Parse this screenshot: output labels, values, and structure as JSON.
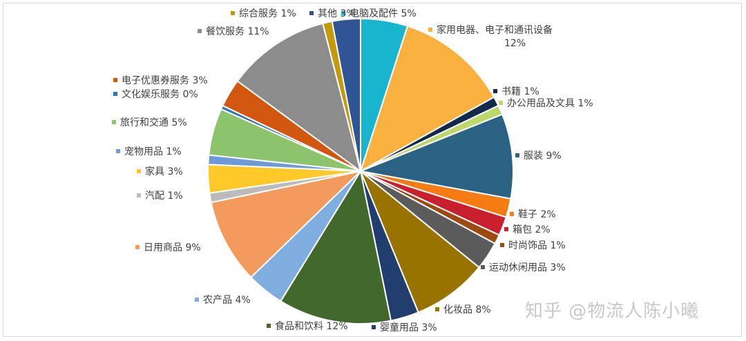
{
  "watermark": "知乎 @物流人陈小曦",
  "chart_data": {
    "type": "pie",
    "title": "",
    "legend": "none",
    "slices": [
      {
        "label": "电脑及配件 5%",
        "value": 5,
        "color": "#17B5CE"
      },
      {
        "label": "家用电器、电子和通讯设备 12%",
        "value": 12,
        "color": "#F9B03E"
      },
      {
        "label": "书籍 1%",
        "value": 1,
        "color": "#13294B"
      },
      {
        "label": "办公用品及文具 1%",
        "value": 1,
        "color": "#BCD86C"
      },
      {
        "label": "服装 9%",
        "value": 9,
        "color": "#2B6283"
      },
      {
        "label": "鞋子 2%",
        "value": 2,
        "color": "#F57C12"
      },
      {
        "label": "箱包 2%",
        "value": 2,
        "color": "#C8202F"
      },
      {
        "label": "时尚饰品 1%",
        "value": 1,
        "color": "#9C4A12"
      },
      {
        "label": "运动休闲用品 3%",
        "value": 3,
        "color": "#5B5B5B"
      },
      {
        "label": "化妆品 8%",
        "value": 8,
        "color": "#997300"
      },
      {
        "label": "婴童用品 3%",
        "value": 3,
        "color": "#223E6E"
      },
      {
        "label": "食品和饮料 12%",
        "value": 12,
        "color": "#43682B"
      },
      {
        "label": "农产品 4%",
        "value": 4,
        "color": "#7DAEDF"
      },
      {
        "label": "日用商品 9%",
        "value": 9,
        "color": "#F29B5C"
      },
      {
        "label": "汽配 1%",
        "value": 1,
        "color": "#BBBBBB"
      },
      {
        "label": "家具 3%",
        "value": 3,
        "color": "#FFCA28"
      },
      {
        "label": "宠物用品 1%",
        "value": 1,
        "color": "#6F9AD8"
      },
      {
        "label": "旅行和交通 5%",
        "value": 5,
        "color": "#8DC36A"
      },
      {
        "label": "文化娱乐服务 0%",
        "value": 0.4,
        "color": "#2E75B6"
      },
      {
        "label": "电子优惠券服务 3%",
        "value": 3,
        "color": "#D3560E"
      },
      {
        "label": "餐饮服务 11%",
        "value": 11,
        "color": "#8C8C8C"
      },
      {
        "label": "综合服务 1%",
        "value": 1,
        "color": "#C49A0C"
      },
      {
        "label": "其他 3%",
        "value": 3,
        "color": "#2F5597"
      }
    ]
  }
}
